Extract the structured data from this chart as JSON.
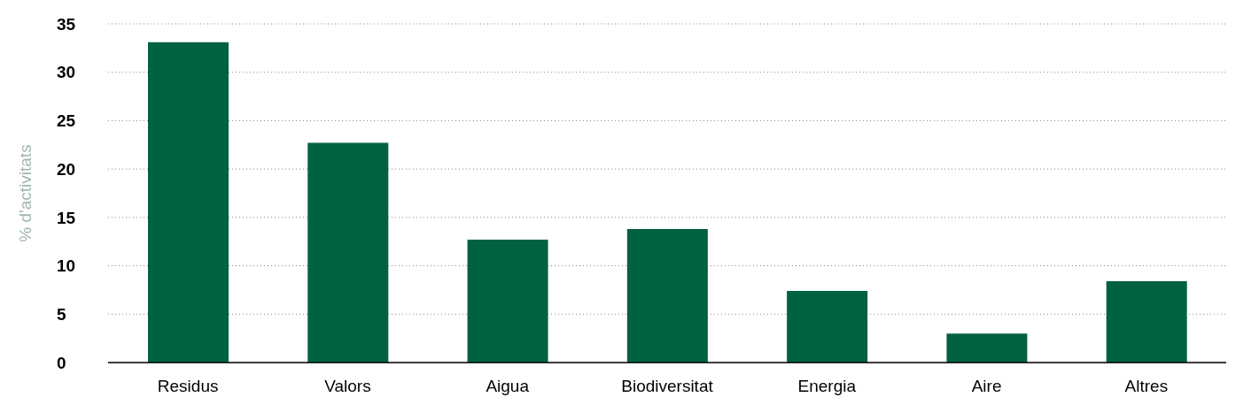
{
  "chart_data": {
    "type": "bar",
    "ylabel": "% d'activitats",
    "categories": [
      "Residus",
      "Valors",
      "Aigua",
      "Biodiversitat",
      "Energia",
      "Aire",
      "Altres"
    ],
    "values": [
      33.1,
      22.7,
      12.7,
      13.8,
      7.4,
      3.0,
      8.4
    ],
    "color": "#006241",
    "ylim": [
      0,
      35
    ],
    "yticks": [
      0,
      5,
      10,
      15,
      20,
      25,
      30,
      35
    ],
    "grid": "y"
  }
}
